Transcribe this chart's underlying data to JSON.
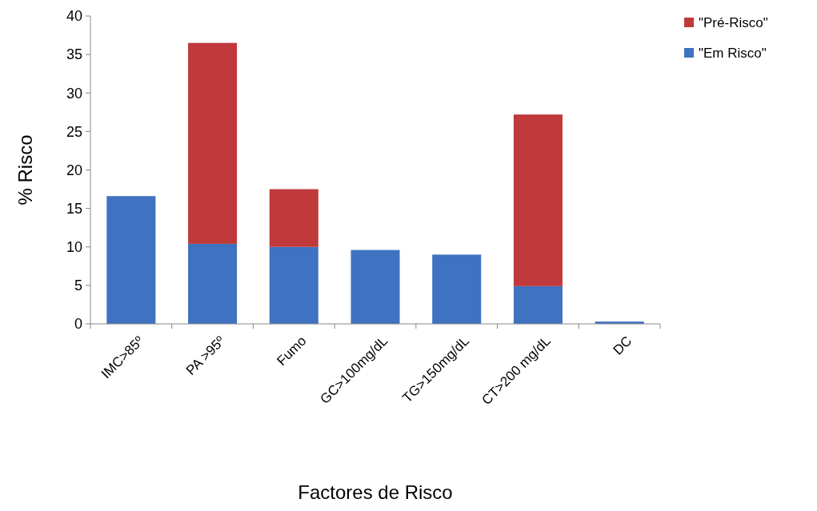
{
  "chart_data": {
    "type": "bar",
    "stacked": true,
    "xlabel": "Factores de Risco",
    "ylabel": "% Risco",
    "categories": [
      "IMC>85º",
      "PA >95º",
      "Fumo",
      "GC>100mg/dL",
      "TG>150mg/dL",
      "CT>200 mg/dL",
      "DC"
    ],
    "series": [
      {
        "name": "\"Em Risco\"",
        "color": "#3f72c0",
        "values": [
          16.6,
          10.4,
          10,
          9.6,
          9,
          4.9,
          0.3
        ]
      },
      {
        "name": "\"Pré-Risco\"",
        "color": "#c0393b",
        "values": [
          0,
          26.1,
          7.5,
          0,
          0,
          22.3,
          0
        ]
      }
    ],
    "ylim": [
      0,
      40
    ],
    "yticks": [
      0,
      5,
      10,
      15,
      20,
      25,
      30,
      35,
      40
    ],
    "grid": false,
    "legend": "top right"
  }
}
